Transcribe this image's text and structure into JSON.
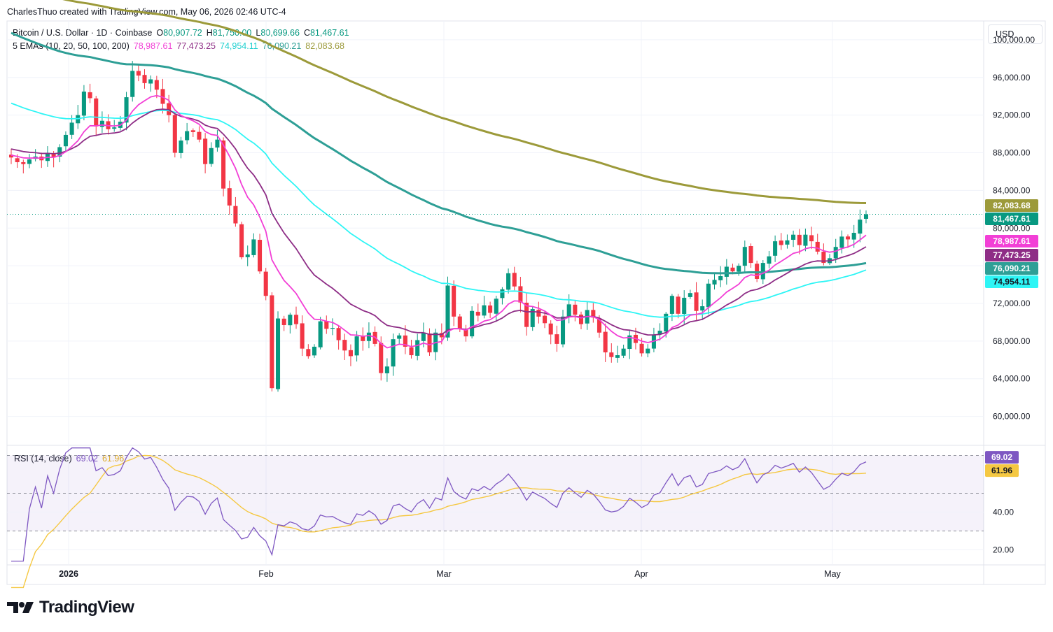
{
  "header": {
    "credit": "CharlesThuo created with TradingView.com, May 06, 2026 02:46 UTC-4",
    "symbol": "Bitcoin / U.S. Dollar · 1D · Coinbase",
    "ohlc": {
      "open": "80,907.72",
      "high": "81,750.00",
      "low": "80,699.66",
      "close": "81,467.61"
    },
    "ema_legend": "5 EMAs (10, 20, 50, 100, 200)",
    "ema_values": [
      "78,987.61",
      "77,473.25",
      "74,954.11",
      "76,090.21",
      "82,083.68"
    ]
  },
  "currency_button": "USD",
  "brand": "TradingView",
  "colors": {
    "up": "#089981",
    "down": "#f23645",
    "ema10": "#f23fd6",
    "ema20": "#8e2d86",
    "ema50": "#2ef5f5",
    "ema100": "#2e9f96",
    "ema200": "#9c9a3a",
    "rsi": "#7e57c2",
    "rsi_ma": "#f5c842",
    "rsi_band": "#7e57c2"
  },
  "chart_data": [
    {
      "type": "candlestick",
      "title": "Bitcoin / U.S. Dollar · 1D · Coinbase",
      "x_ticks": [
        "2026",
        "Feb",
        "Mar",
        "Apr",
        "May"
      ],
      "y_ticks": [
        "100,000.00",
        "96,000.00",
        "92,000.00",
        "88,000.00",
        "84,000.00",
        "80,000.00",
        "76,000.00",
        "72,000.00",
        "68,000.00",
        "64,000.00",
        "60,000.00"
      ],
      "y_tick_values": [
        100000,
        96000,
        92000,
        88000,
        84000,
        80000,
        76000,
        72000,
        68000,
        64000,
        60000
      ],
      "ylim": [
        57000,
        102000
      ],
      "last_price": 81467.61,
      "candles_close": [
        87500,
        87000,
        86800,
        87300,
        87600,
        87200,
        88000,
        87500,
        88600,
        89900,
        91200,
        92000,
        94500,
        93800,
        90800,
        91400,
        90500,
        90700,
        91300,
        93900,
        96700,
        96200,
        95400,
        95800,
        94700,
        93200,
        92000,
        88000,
        89300,
        90300,
        90200,
        89400,
        86800,
        88500,
        89400,
        84200,
        82400,
        80500,
        76900,
        77200,
        78800,
        75400,
        72800,
        63000,
        70400,
        69700,
        70800,
        69800,
        67200,
        66400,
        67400,
        70100,
        69300,
        69400,
        68100,
        67000,
        66400,
        68500,
        68000,
        68900,
        67700,
        64600,
        65300,
        68200,
        68600,
        67400,
        66500,
        68100,
        68900,
        66800,
        68900,
        68400,
        73900,
        70600,
        69300,
        68500,
        71200,
        70700,
        71800,
        71000,
        72500,
        73500,
        75200,
        73800,
        72100,
        69500,
        71400,
        70600,
        69900,
        68700,
        67700,
        70600,
        71900,
        70800,
        69800,
        71300,
        70500,
        68900,
        66800,
        66300,
        66500,
        67200,
        68600,
        67800,
        66700,
        67200,
        68700,
        69100,
        70900,
        72800,
        70900,
        72600,
        73100,
        71200,
        71700,
        74100,
        74500,
        74900,
        75900,
        75400,
        76000,
        78000,
        76300,
        74600,
        76300,
        77000,
        78600,
        78200,
        78700,
        79300,
        78200,
        79300,
        78600,
        77500,
        76300,
        76800,
        78000,
        79100,
        78800,
        79500,
        80900,
        81467.61
      ],
      "series": [
        {
          "name": "EMA 10",
          "value_label": "78,987.61",
          "last": 78987.61
        },
        {
          "name": "EMA 20",
          "value_label": "77,473.25",
          "last": 77473.25
        },
        {
          "name": "EMA 50",
          "value_label": "74,954.11",
          "last": 74954.11
        },
        {
          "name": "EMA 100",
          "value_label": "76,090.21",
          "last": 76090.21
        },
        {
          "name": "EMA 200",
          "value_label": "82,083.68",
          "last": 82083.68
        }
      ],
      "price_labels": [
        "82,083.68",
        "81,467.61",
        "78,987.61",
        "77,473.25",
        "76,090.21",
        "74,954.11"
      ]
    },
    {
      "type": "line",
      "title": "RSI (14, close)",
      "values_label": [
        "69.02",
        "61.96"
      ],
      "series": [
        {
          "name": "RSI",
          "last": 69.02
        },
        {
          "name": "RSI MA",
          "last": 61.96
        }
      ],
      "y_ticks": [
        "40.00",
        "20.00"
      ],
      "y_tick_values": [
        40,
        20
      ],
      "bands": [
        70,
        50,
        30
      ],
      "ylim": [
        12,
        75
      ]
    }
  ]
}
